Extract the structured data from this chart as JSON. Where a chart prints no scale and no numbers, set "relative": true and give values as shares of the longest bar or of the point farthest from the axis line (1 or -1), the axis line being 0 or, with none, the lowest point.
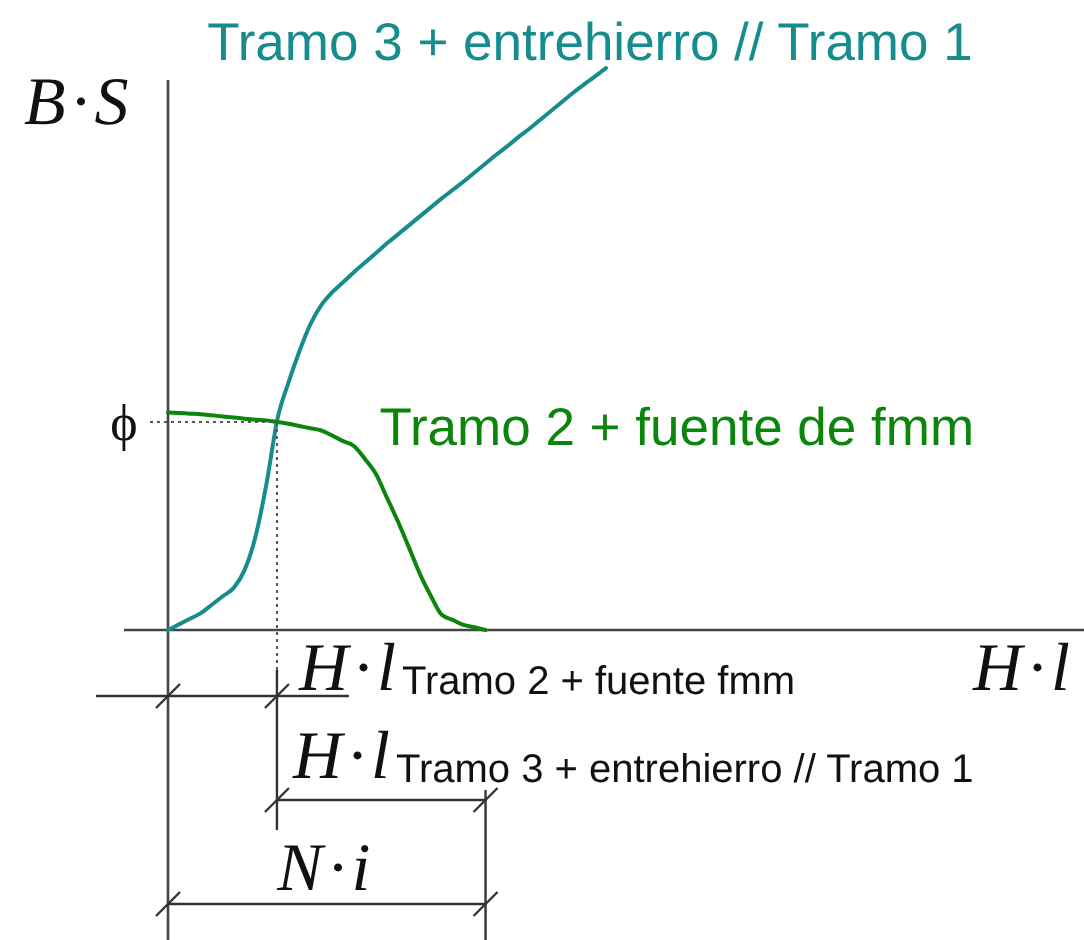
{
  "chart_data": {
    "type": "line",
    "relative": true,
    "xlabel": "H·l",
    "ylabel": "B·S",
    "line_style": "solid",
    "categories": [
      null,
      null,
      null,
      null,
      null,
      null,
      null,
      null,
      null,
      null,
      null,
      null,
      null,
      null,
      null,
      null,
      null,
      null,
      null,
      null,
      null,
      null,
      null,
      null,
      null,
      null,
      null,
      null,
      null,
      null,
      null,
      null,
      null,
      null,
      null,
      null,
      null,
      null,
      null,
      null,
      null,
      null,
      null,
      null,
      null,
      null,
      null,
      null,
      null,
      null,
      null,
      null,
      null,
      null,
      null,
      null,
      null,
      null,
      null,
      null,
      null,
      null,
      null,
      null,
      null,
      null,
      null,
      null,
      null,
      null,
      null,
      null,
      null,
      null,
      null,
      null,
      null,
      null,
      null,
      null,
      null,
      null,
      null
    ],
    "series": [
      {
        "name": "Tramo 3 + entrehierro // Tramo 1",
        "color": "#178c8c",
        "values": [
          0,
          0.01,
          0.02,
          0.03,
          0.045,
          0.06,
          0.075,
          0.107,
          0.167,
          0.261,
          0.376,
          0.44,
          0.496,
          0.544,
          0.578,
          0.601,
          0.619,
          0.637,
          0.654,
          0.671,
          0.688,
          0.704,
          0.72,
          0.736,
          0.752,
          0.768,
          0.783,
          0.798,
          0.814,
          0.83,
          0.846,
          0.861,
          0.877,
          0.892,
          0.908,
          0.924,
          0.94,
          0.956,
          0.971,
          0.985,
          1,
          null,
          null,
          null,
          null,
          null,
          null,
          null,
          null,
          null,
          null,
          null,
          null,
          null,
          null,
          null,
          null,
          null,
          null,
          null,
          null,
          null,
          null,
          null,
          null,
          null,
          null,
          null,
          null,
          null,
          null,
          null,
          null,
          null,
          null,
          null,
          null,
          null,
          null,
          null,
          null,
          null,
          null
        ]
      },
      {
        "name": "Tramo 2 + fuente de fmm",
        "color": "#0b850b",
        "values": [
          0.387,
          0.386,
          0.385,
          0.384,
          0.382,
          0.38,
          0.378,
          0.376,
          0.374,
          0.373,
          0.37,
          0.367,
          0.363,
          0.359,
          0.355,
          0.346,
          0.336,
          0.327,
          0.304,
          0.277,
          0.235,
          0.193,
          0.147,
          0.1,
          0.061,
          0.027,
          0.018,
          0.009,
          0.005,
          0,
          null,
          null,
          null,
          null,
          null,
          null,
          null,
          null,
          null,
          null,
          null,
          null,
          null,
          null,
          null,
          null,
          null,
          null,
          null,
          null,
          null,
          null,
          null,
          null,
          null,
          null,
          null,
          null,
          null,
          null,
          null,
          null,
          null,
          null,
          null,
          null,
          null,
          null,
          null,
          null,
          null,
          null,
          null,
          null,
          null,
          null,
          null,
          null,
          null,
          null,
          null,
          null,
          null
        ]
      }
    ],
    "annotations": [
      "ϕ",
      "H·l$_{Tramo 2 + fuente fmm}$",
      "H·l$_{Tramo 3 + entrehierro // Tramo 1}$",
      "N·i"
    ]
  }
}
